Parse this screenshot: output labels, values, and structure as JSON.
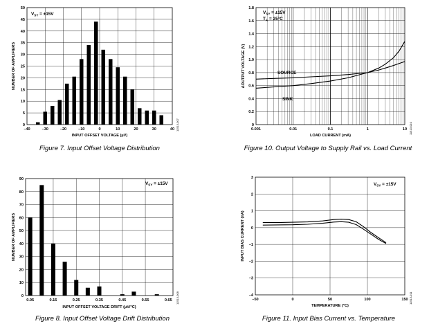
{
  "chart_data": [
    {
      "type": "bar",
      "title": "",
      "caption": "Figure 7. Input Offset Voltage Distribution",
      "xlabel": "INPUT OFFSET VOLTAGE (µV)",
      "ylabel": "NUMBER OF AMPLIFIERS",
      "xlim": [
        -40,
        40
      ],
      "ylim": [
        0,
        50
      ],
      "xticks": [
        "–40",
        "–30",
        "–20",
        "–10",
        "0",
        "10",
        "20",
        "30",
        "40"
      ],
      "yticks": [
        "0",
        "5",
        "10",
        "15",
        "20",
        "25",
        "30",
        "35",
        "40",
        "45",
        "50"
      ],
      "annotations": [
        {
          "text": "V",
          "sub": "SY",
          "rest": " = ±15V"
        }
      ],
      "code": "11513-007",
      "x": [
        -34,
        -30,
        -26,
        -22,
        -18,
        -14,
        -10,
        -6,
        -2,
        2,
        6,
        10,
        14,
        18,
        22,
        26,
        30,
        34
      ],
      "values": [
        1,
        5.5,
        8,
        10.5,
        17.5,
        20.5,
        28,
        34,
        44,
        32,
        28,
        24.5,
        20.5,
        15,
        7,
        6,
        6,
        4
      ]
    },
    {
      "type": "line",
      "scale_x": "log",
      "title": "",
      "caption": "Figure 10. Output Voltage to Supply Rail vs. Load Current",
      "xlabel": "LOAD CURRENT (mA)",
      "ylabel": "ΔOUTPUT VOLTAGE (V)",
      "xlim": [
        0.001,
        10
      ],
      "ylim": [
        0,
        1.8
      ],
      "xticks": [
        "0.001",
        "0.01",
        "0.1",
        "1",
        "10"
      ],
      "yticks": [
        "0",
        "0.2",
        "0.4",
        "0.6",
        "0.8",
        "1.0",
        "1.2",
        "1.4",
        "1.6",
        "1.8"
      ],
      "annotations": [
        {
          "text": "V",
          "sub": "SY",
          "rest": " = ±15V"
        },
        {
          "text": "T",
          "sub": "A",
          "rest": " = 25°C"
        }
      ],
      "code": "11513-010",
      "series": [
        {
          "name": "SOURCE",
          "x": [
            0.001,
            0.003,
            0.01,
            0.03,
            0.1,
            0.3,
            1,
            2,
            3,
            5,
            7,
            10
          ],
          "y": [
            0.7,
            0.71,
            0.72,
            0.735,
            0.75,
            0.77,
            0.8,
            0.84,
            0.87,
            0.91,
            0.94,
            0.97
          ]
        },
        {
          "name": "SINK",
          "x": [
            0.001,
            0.003,
            0.01,
            0.03,
            0.1,
            0.3,
            1,
            2,
            3,
            5,
            7,
            10
          ],
          "y": [
            0.56,
            0.58,
            0.6,
            0.63,
            0.67,
            0.72,
            0.8,
            0.87,
            0.93,
            1.03,
            1.13,
            1.28
          ]
        }
      ]
    },
    {
      "type": "bar",
      "title": "",
      "caption": "Figure 8. Input Offset Voltage Drift Distribution",
      "xlabel": "INPUT OFFSET VOLTAGE DRIFT (µV/°C)",
      "ylabel": "NUMBER OF AMPLIFIERS",
      "xlim": [
        0.03,
        0.67
      ],
      "ylim": [
        0,
        90
      ],
      "xticks": [
        "0.05",
        "0.15",
        "0.25",
        "0.35",
        "0.45",
        "0.55",
        "0.65"
      ],
      "yticks": [
        "0",
        "10",
        "20",
        "30",
        "40",
        "50",
        "60",
        "70",
        "80",
        "90"
      ],
      "annotations": [
        {
          "text": "V",
          "sub": "SY",
          "rest": " = ±15V"
        }
      ],
      "code": "11513-008",
      "x": [
        0.05,
        0.1,
        0.15,
        0.2,
        0.25,
        0.3,
        0.35,
        0.4,
        0.45,
        0.5,
        0.55,
        0.6
      ],
      "values": [
        60,
        85,
        40,
        26,
        12,
        6,
        7,
        0,
        1,
        3,
        0,
        1
      ]
    },
    {
      "type": "line",
      "title": "",
      "caption": "Figure 11. Input Bias Current vs. Temperature",
      "xlabel": "TEMPERATURE (°C)",
      "ylabel": "INPUT BIAS CURRENT (nA)",
      "xlim": [
        -50,
        150
      ],
      "ylim": [
        -4,
        3
      ],
      "xticks": [
        "–50",
        "0",
        "50",
        "100",
        "150"
      ],
      "yticks": [
        "–4",
        "–3",
        "–2",
        "–1",
        "0",
        "1",
        "2",
        "3"
      ],
      "annotations": [
        {
          "text": "V",
          "sub": "SY",
          "rest": " = ±15V"
        }
      ],
      "code": "11513-011",
      "series": [
        {
          "name": "upper",
          "x": [
            -40,
            -20,
            0,
            20,
            40,
            55,
            65,
            75,
            85,
            95,
            105,
            115,
            125
          ],
          "y": [
            0.3,
            0.3,
            0.32,
            0.34,
            0.4,
            0.48,
            0.5,
            0.48,
            0.35,
            0.05,
            -0.3,
            -0.6,
            -0.9
          ]
        },
        {
          "name": "lower",
          "x": [
            -40,
            -20,
            0,
            20,
            40,
            55,
            65,
            75,
            85,
            95,
            105,
            115,
            125
          ],
          "y": [
            0.15,
            0.16,
            0.17,
            0.2,
            0.26,
            0.33,
            0.35,
            0.32,
            0.18,
            -0.1,
            -0.4,
            -0.7,
            -0.95
          ]
        }
      ]
    }
  ]
}
